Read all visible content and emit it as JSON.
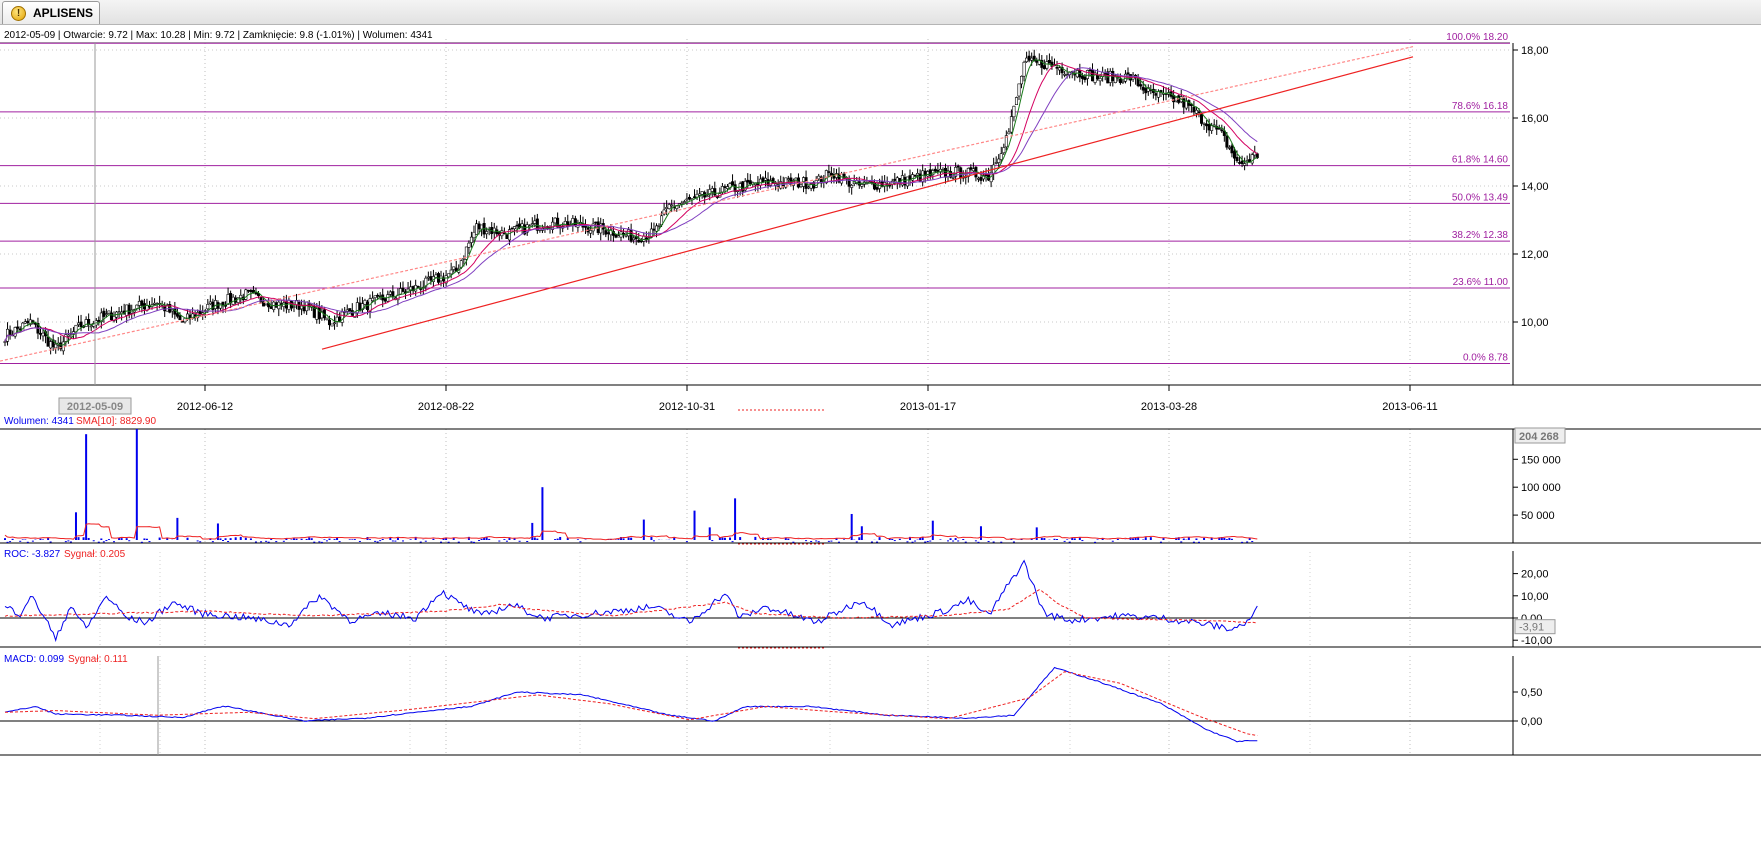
{
  "window": {
    "tab_title": "APLISENS",
    "tab_icon": "warning-icon"
  },
  "chart_data": [
    {
      "type": "candlestick",
      "panel": "price",
      "header": "2012-05-09 | Otwarcie: 9.72 | Max: 10.28 | Min: 9.72 | Zamknięcie: 9.8 (-1.01%) | Wolumen: 4341",
      "x_axis_labels": [
        "2012-06-12",
        "2012-08-22",
        "2012-10-31",
        "2013-01-17",
        "2013-03-28",
        "2013-06-11"
      ],
      "cursor_label": "2012-05-09",
      "y_ticks": [
        10,
        12,
        14,
        16,
        18
      ],
      "y_tick_labels": [
        "10,00",
        "12,00",
        "14,00",
        "16,00",
        "18,00"
      ],
      "ylim": [
        8.6,
        18.3
      ],
      "fibonacci": [
        {
          "label": "0.0% 8.78",
          "value": 8.78
        },
        {
          "label": "23.6% 11.00",
          "value": 11.0
        },
        {
          "label": "38.2% 12.38",
          "value": 12.38
        },
        {
          "label": "50.0% 13.49",
          "value": 13.49
        },
        {
          "label": "61.8% 14.60",
          "value": 14.6
        },
        {
          "label": "78.6% 16.18",
          "value": 16.18
        },
        {
          "label": "100.0% 18.20",
          "value": 18.2
        }
      ],
      "price_anchors": [
        [
          0,
          9.6
        ],
        [
          10,
          10.0
        ],
        [
          20,
          9.2
        ],
        [
          30,
          9.9
        ],
        [
          45,
          10.3
        ],
        [
          60,
          10.6
        ],
        [
          70,
          10.0
        ],
        [
          82,
          10.5
        ],
        [
          95,
          10.8
        ],
        [
          108,
          10.5
        ],
        [
          118,
          10.5
        ],
        [
          128,
          10.0
        ],
        [
          138,
          10.4
        ],
        [
          150,
          10.7
        ],
        [
          162,
          11.0
        ],
        [
          172,
          11.3
        ],
        [
          178,
          11.5
        ],
        [
          186,
          12.8
        ],
        [
          198,
          12.6
        ],
        [
          212,
          12.9
        ],
        [
          222,
          12.9
        ],
        [
          238,
          12.7
        ],
        [
          248,
          12.5
        ],
        [
          256,
          12.6
        ],
        [
          262,
          13.4
        ],
        [
          272,
          13.6
        ],
        [
          285,
          13.9
        ],
        [
          300,
          14.1
        ],
        [
          312,
          14.1
        ],
        [
          320,
          14.1
        ],
        [
          326,
          14.4
        ],
        [
          336,
          14.0
        ],
        [
          350,
          14.1
        ],
        [
          362,
          14.3
        ],
        [
          376,
          14.4
        ],
        [
          388,
          14.3
        ],
        [
          396,
          15.6
        ],
        [
          402,
          17.6
        ],
        [
          410,
          17.6
        ],
        [
          420,
          17.4
        ],
        [
          432,
          17.2
        ],
        [
          444,
          17.2
        ],
        [
          452,
          16.7
        ],
        [
          464,
          16.5
        ],
        [
          472,
          16.0
        ],
        [
          480,
          15.5
        ],
        [
          487,
          14.6
        ],
        [
          493,
          14.9
        ]
      ],
      "moving_averages": [
        {
          "color": "#1a7a1a",
          "period": 5
        },
        {
          "color": "#d40060",
          "period": 15
        },
        {
          "color": "#8040c0",
          "period": 25
        }
      ],
      "trend_lines": [
        {
          "style": "solid",
          "color": "#ee2222",
          "points": [
            [
              "2012-07-03",
              9.2
            ],
            [
              "2013-06-11",
              17.8
            ]
          ]
        },
        {
          "style": "dashed",
          "color": "#ff8888",
          "points": [
            [
              "2012-04-23",
              8.85
            ],
            [
              "2013-06-11",
              18.1
            ]
          ]
        }
      ]
    },
    {
      "type": "bar",
      "panel": "volume",
      "header_value": "Wolumen: 4341",
      "header_signal": "SMA[10]: 8829.90",
      "y_ticks": [
        50000,
        100000,
        150000
      ],
      "y_tick_labels": [
        "50 000",
        "100 000",
        "150 000"
      ],
      "ylim": [
        0,
        204268
      ],
      "max_label": "204 268",
      "spikes": [
        {
          "index": 32,
          "value": 195000
        },
        {
          "index": 52,
          "value": 204268
        },
        {
          "index": 28,
          "value": 55000
        },
        {
          "index": 68,
          "value": 45000
        },
        {
          "index": 84,
          "value": 35000
        },
        {
          "index": 208,
          "value": 36000
        },
        {
          "index": 212,
          "value": 100000
        },
        {
          "index": 252,
          "value": 42000
        },
        {
          "index": 272,
          "value": 58000
        },
        {
          "index": 278,
          "value": 28000
        },
        {
          "index": 288,
          "value": 80000
        },
        {
          "index": 334,
          "value": 52000
        },
        {
          "index": 338,
          "value": 30000
        },
        {
          "index": 366,
          "value": 40000
        },
        {
          "index": 385,
          "value": 30000
        },
        {
          "index": 407,
          "value": 28000
        }
      ],
      "sma_color": "#ee2222",
      "bar_color": "#0000ee"
    },
    {
      "type": "line",
      "panel": "roc",
      "header_value": "ROC: -3.827",
      "header_signal": "Sygnał: 0.205",
      "y_ticks": [
        20,
        10,
        0,
        -10
      ],
      "y_tick_labels": [
        "20,00",
        "10,00",
        "0,00",
        "-10,00"
      ],
      "current_label": "-3,91",
      "ylim": [
        -12,
        28
      ],
      "series": [
        {
          "color": "#0000ee",
          "anchors": [
            [
              0,
              5
            ],
            [
              6,
              2
            ],
            [
              10,
              10
            ],
            [
              16,
              0
            ],
            [
              20,
              -10
            ],
            [
              26,
              6
            ],
            [
              32,
              -5
            ],
            [
              40,
              10
            ],
            [
              48,
              0
            ],
            [
              56,
              -2
            ],
            [
              66,
              7
            ],
            [
              78,
              2
            ],
            [
              96,
              0
            ],
            [
              112,
              -3
            ],
            [
              124,
              10
            ],
            [
              136,
              -1
            ],
            [
              150,
              2
            ],
            [
              162,
              0
            ],
            [
              172,
              12
            ],
            [
              180,
              6
            ],
            [
              188,
              1
            ],
            [
              200,
              6
            ],
            [
              212,
              0
            ],
            [
              232,
              2
            ],
            [
              256,
              5
            ],
            [
              270,
              -2
            ],
            [
              284,
              11
            ],
            [
              290,
              0
            ],
            [
              300,
              5
            ],
            [
              320,
              -2
            ],
            [
              338,
              8
            ],
            [
              350,
              -3
            ],
            [
              370,
              3
            ],
            [
              380,
              8
            ],
            [
              388,
              1
            ],
            [
              398,
              19
            ],
            [
              402,
              25
            ],
            [
              410,
              2
            ],
            [
              420,
              -1
            ],
            [
              440,
              1
            ],
            [
              456,
              0
            ],
            [
              470,
              -2
            ],
            [
              484,
              -5
            ],
            [
              490,
              -2
            ],
            [
              494,
              4
            ]
          ]
        },
        {
          "color": "#ee2222",
          "style": "dashed",
          "anchors": [
            [
              0,
              1
            ],
            [
              40,
              2
            ],
            [
              80,
              3
            ],
            [
              120,
              1
            ],
            [
              150,
              2
            ],
            [
              172,
              3
            ],
            [
              196,
              6
            ],
            [
              206,
              4
            ],
            [
              240,
              1
            ],
            [
              284,
              7
            ],
            [
              296,
              2
            ],
            [
              330,
              0
            ],
            [
              370,
              1
            ],
            [
              396,
              4
            ],
            [
              408,
              13
            ],
            [
              416,
              6
            ],
            [
              426,
              0
            ],
            [
              470,
              -1
            ],
            [
              494,
              -2
            ]
          ]
        }
      ]
    },
    {
      "type": "line",
      "panel": "macd",
      "header_value": "MACD: 0.099",
      "header_signal": "Sygnał: 0.111",
      "y_ticks": [
        0.5,
        0
      ],
      "y_tick_labels": [
        "0,50",
        "0,00"
      ],
      "ylim": [
        -0.4,
        1.05
      ],
      "series": [
        {
          "color": "#0000ee",
          "anchors": [
            [
              0,
              0.15
            ],
            [
              12,
              0.25
            ],
            [
              20,
              0.12
            ],
            [
              46,
              0.1
            ],
            [
              70,
              0.06
            ],
            [
              86,
              0.26
            ],
            [
              118,
              0.0
            ],
            [
              142,
              0.05
            ],
            [
              172,
              0.2
            ],
            [
              184,
              0.25
            ],
            [
              202,
              0.5
            ],
            [
              228,
              0.45
            ],
            [
              262,
              0.1
            ],
            [
              280,
              0.0
            ],
            [
              292,
              0.25
            ],
            [
              318,
              0.25
            ],
            [
              348,
              0.1
            ],
            [
              380,
              0.05
            ],
            [
              398,
              0.1
            ],
            [
              414,
              0.92
            ],
            [
              430,
              0.7
            ],
            [
              456,
              0.3
            ],
            [
              474,
              -0.15
            ],
            [
              486,
              -0.35
            ],
            [
              494,
              -0.34
            ]
          ]
        },
        {
          "color": "#ee2222",
          "style": "dashed",
          "anchors": [
            [
              0,
              0.15
            ],
            [
              20,
              0.18
            ],
            [
              60,
              0.1
            ],
            [
              96,
              0.15
            ],
            [
              122,
              0.04
            ],
            [
              160,
              0.2
            ],
            [
              210,
              0.45
            ],
            [
              238,
              0.3
            ],
            [
              270,
              0.02
            ],
            [
              300,
              0.25
            ],
            [
              330,
              0.15
            ],
            [
              372,
              0.04
            ],
            [
              404,
              0.4
            ],
            [
              418,
              0.85
            ],
            [
              440,
              0.65
            ],
            [
              470,
              0.1
            ],
            [
              490,
              -0.22
            ],
            [
              494,
              -0.25
            ]
          ]
        }
      ]
    }
  ]
}
